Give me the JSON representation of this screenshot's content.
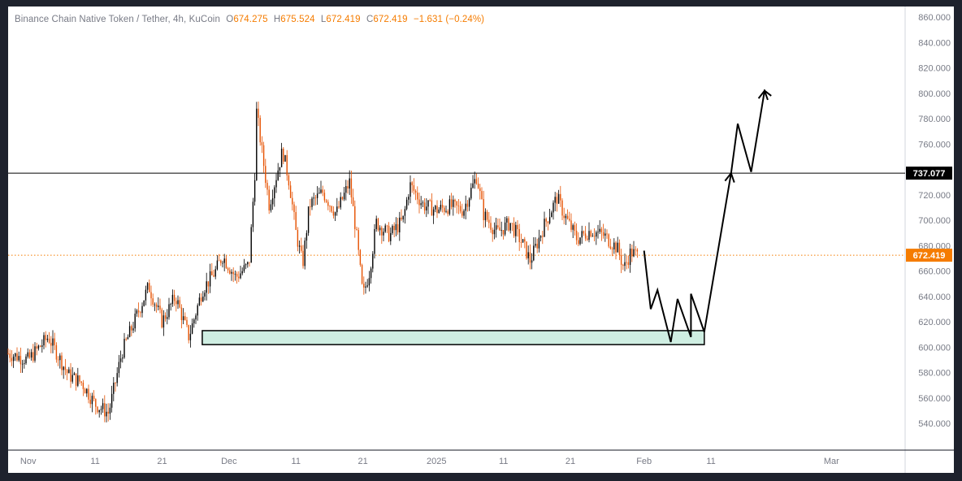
{
  "legend": {
    "symbol": "Binance Chain Native Token / Tether, 4h, KuCoin",
    "o_label": "O",
    "o": "674.275",
    "h_label": "H",
    "h": "675.524",
    "l_label": "L",
    "l": "672.419",
    "c_label": "C",
    "c": "672.419",
    "change": "−1.631 (−0.24%)"
  },
  "colors": {
    "background": "#ffffff",
    "frame": "#1e222d",
    "up": "#000000",
    "down": "#e65100",
    "price_line": "#f57c00",
    "resistance": "#000000",
    "zone_fill": "#cfeee2"
  },
  "chart_data": {
    "type": "candlestick",
    "symbol": "Binance Chain Native Token / Tether",
    "timeframe": "4h",
    "exchange": "KuCoin",
    "ylim": [
      530,
      862
    ],
    "y_ticks": [
      540,
      560,
      580,
      600,
      620,
      640,
      660,
      680,
      700,
      720,
      740,
      760,
      780,
      800,
      820,
      840,
      860
    ],
    "y_tick_labels": [
      "540.000",
      "560.000",
      "580.000",
      "600.000",
      "620.000",
      "640.000",
      "660.000",
      "680.000",
      "700.000",
      "720.000",
      "740.000",
      "760.000",
      "780.000",
      "800.000",
      "820.000",
      "840.000",
      "860.000"
    ],
    "x_tick_labels": [
      "Nov",
      "11",
      "21",
      "Dec",
      "11",
      "21",
      "2025",
      "11",
      "21",
      "Feb",
      "11",
      "Mar"
    ],
    "x_tick_dates": [
      "2024-11-01",
      "2024-11-11",
      "2024-11-21",
      "2024-12-01",
      "2024-12-11",
      "2024-12-21",
      "2025-01-01",
      "2025-01-11",
      "2025-01-21",
      "2025-02-01",
      "2025-02-11",
      "2025-03-01"
    ],
    "x_range": [
      "2024-10-29",
      "2025-03-12"
    ],
    "series_path": [
      [
        "2024-10-29",
        595
      ],
      [
        "2024-11-01",
        590
      ],
      [
        "2024-11-04",
        608
      ],
      [
        "2024-11-07",
        578
      ],
      [
        "2024-11-09",
        572
      ],
      [
        "2024-11-11",
        555
      ],
      [
        "2024-11-13",
        548
      ],
      [
        "2024-11-15",
        596
      ],
      [
        "2024-11-17",
        622
      ],
      [
        "2024-11-19",
        648
      ],
      [
        "2024-11-21",
        620
      ],
      [
        "2024-11-23",
        640
      ],
      [
        "2024-11-25",
        608
      ],
      [
        "2024-11-27",
        645
      ],
      [
        "2024-11-29",
        660
      ],
      [
        "2024-11-30",
        672
      ],
      [
        "2024-12-02",
        655
      ],
      [
        "2024-12-04",
        665
      ],
      [
        "2024-12-05",
        750
      ],
      [
        "2024-12-05",
        790
      ],
      [
        "2024-12-07",
        712
      ],
      [
        "2024-12-09",
        755
      ],
      [
        "2024-12-10",
        730
      ],
      [
        "2024-12-11",
        690
      ],
      [
        "2024-12-12",
        665
      ],
      [
        "2024-12-13",
        712
      ],
      [
        "2024-12-15",
        722
      ],
      [
        "2024-12-17",
        705
      ],
      [
        "2024-12-19",
        730
      ],
      [
        "2024-12-20",
        690
      ],
      [
        "2024-12-21",
        640
      ],
      [
        "2024-12-22",
        660
      ],
      [
        "2024-12-23",
        698
      ],
      [
        "2024-12-25",
        688
      ],
      [
        "2024-12-27",
        700
      ],
      [
        "2024-12-28",
        728
      ],
      [
        "2024-12-30",
        712
      ],
      [
        "2025-01-01",
        708
      ],
      [
        "2025-01-03",
        711
      ],
      [
        "2025-01-05",
        708
      ],
      [
        "2025-01-07",
        735
      ],
      [
        "2025-01-08",
        705
      ],
      [
        "2025-01-10",
        690
      ],
      [
        "2025-01-12",
        698
      ],
      [
        "2025-01-14",
        680
      ],
      [
        "2025-01-15",
        668
      ],
      [
        "2025-01-17",
        695
      ],
      [
        "2025-01-19",
        718
      ],
      [
        "2025-01-20",
        705
      ],
      [
        "2025-01-22",
        685
      ],
      [
        "2025-01-24",
        692
      ],
      [
        "2025-01-26",
        688
      ],
      [
        "2025-01-28",
        678
      ],
      [
        "2025-01-29",
        662
      ],
      [
        "2025-01-30",
        675
      ],
      [
        "2025-01-31",
        672.419
      ]
    ],
    "last_candle": {
      "open": 674.275,
      "high": 675.524,
      "low": 672.419,
      "close": 672.419,
      "change": -1.631,
      "change_pct": -0.24
    },
    "last_price": 672.419,
    "last_price_label": "672.419",
    "resistance": {
      "level": 737.077,
      "label": "737.077"
    },
    "support_zone": {
      "from": 602,
      "to": 613,
      "start": "2024-11-27",
      "end": "2025-02-10"
    },
    "projection": [
      [
        "2025-02-01",
        676
      ],
      [
        "2025-02-02",
        630
      ],
      [
        "2025-02-03",
        645
      ],
      [
        "2025-02-05",
        604
      ],
      [
        "2025-02-06",
        638
      ],
      [
        "2025-02-08",
        608
      ],
      [
        "2025-02-08",
        642
      ],
      [
        "2025-02-10",
        612
      ],
      [
        "2025-02-14",
        737
      ],
      [
        "2025-02-15",
        776
      ],
      [
        "2025-02-17",
        738
      ],
      [
        "2025-02-19",
        802
      ],
      [
        "2025-02-20",
        798
      ]
    ]
  }
}
